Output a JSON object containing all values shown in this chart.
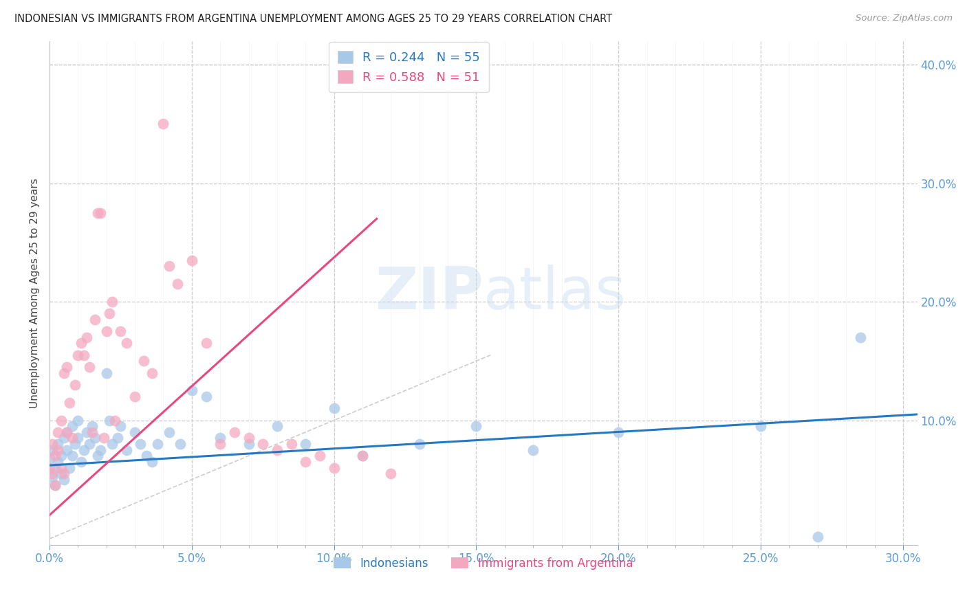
{
  "title": "INDONESIAN VS IMMIGRANTS FROM ARGENTINA UNEMPLOYMENT AMONG AGES 25 TO 29 YEARS CORRELATION CHART",
  "source": "Source: ZipAtlas.com",
  "ylabel": "Unemployment Among Ages 25 to 29 years",
  "legend_label_1": "Indonesians",
  "legend_label_2": "Immigrants from Argentina",
  "R1": 0.244,
  "N1": 55,
  "R2": 0.588,
  "N2": 51,
  "color_blue": "#a8c8e8",
  "color_pink": "#f4a8c0",
  "color_blue_line": "#2878c0",
  "color_pink_line": "#e84880",
  "color_diag": "#c8c8c8",
  "xlim": [
    0.0,
    0.305
  ],
  "ylim": [
    -0.005,
    0.42
  ],
  "xticks": [
    0.0,
    0.05,
    0.1,
    0.15,
    0.2,
    0.25,
    0.3
  ],
  "yticks_right": [
    0.1,
    0.2,
    0.3,
    0.4
  ],
  "indo_x": [
    0.0,
    0.001,
    0.001,
    0.002,
    0.002,
    0.003,
    0.003,
    0.004,
    0.004,
    0.005,
    0.005,
    0.006,
    0.006,
    0.007,
    0.008,
    0.008,
    0.009,
    0.01,
    0.01,
    0.011,
    0.012,
    0.013,
    0.014,
    0.015,
    0.016,
    0.017,
    0.018,
    0.02,
    0.021,
    0.022,
    0.024,
    0.025,
    0.027,
    0.03,
    0.032,
    0.034,
    0.036,
    0.038,
    0.042,
    0.046,
    0.05,
    0.055,
    0.06,
    0.07,
    0.08,
    0.09,
    0.1,
    0.11,
    0.13,
    0.15,
    0.17,
    0.2,
    0.25,
    0.27,
    0.285
  ],
  "indo_y": [
    0.068,
    0.052,
    0.075,
    0.06,
    0.045,
    0.08,
    0.065,
    0.055,
    0.07,
    0.05,
    0.085,
    0.09,
    0.075,
    0.06,
    0.095,
    0.07,
    0.08,
    0.1,
    0.085,
    0.065,
    0.075,
    0.09,
    0.08,
    0.095,
    0.085,
    0.07,
    0.075,
    0.14,
    0.1,
    0.08,
    0.085,
    0.095,
    0.075,
    0.09,
    0.08,
    0.07,
    0.065,
    0.08,
    0.09,
    0.08,
    0.125,
    0.12,
    0.085,
    0.08,
    0.095,
    0.08,
    0.11,
    0.07,
    0.08,
    0.095,
    0.075,
    0.09,
    0.095,
    0.002,
    0.17
  ],
  "arg_x": [
    0.0,
    0.001,
    0.001,
    0.002,
    0.002,
    0.003,
    0.003,
    0.004,
    0.004,
    0.005,
    0.005,
    0.006,
    0.006,
    0.007,
    0.008,
    0.009,
    0.01,
    0.011,
    0.012,
    0.013,
    0.014,
    0.015,
    0.016,
    0.017,
    0.018,
    0.019,
    0.02,
    0.021,
    0.022,
    0.023,
    0.025,
    0.027,
    0.03,
    0.033,
    0.036,
    0.04,
    0.042,
    0.045,
    0.05,
    0.055,
    0.06,
    0.065,
    0.07,
    0.075,
    0.08,
    0.085,
    0.09,
    0.095,
    0.1,
    0.11,
    0.12
  ],
  "arg_y": [
    0.06,
    0.055,
    0.08,
    0.07,
    0.045,
    0.09,
    0.075,
    0.06,
    0.1,
    0.055,
    0.14,
    0.145,
    0.09,
    0.115,
    0.085,
    0.13,
    0.155,
    0.165,
    0.155,
    0.17,
    0.145,
    0.09,
    0.185,
    0.275,
    0.275,
    0.085,
    0.175,
    0.19,
    0.2,
    0.1,
    0.175,
    0.165,
    0.12,
    0.15,
    0.14,
    0.35,
    0.23,
    0.215,
    0.235,
    0.165,
    0.08,
    0.09,
    0.085,
    0.08,
    0.075,
    0.08,
    0.065,
    0.07,
    0.06,
    0.07,
    0.055
  ],
  "blue_trend_x": [
    0.0,
    0.305
  ],
  "blue_trend_y": [
    0.062,
    0.105
  ],
  "pink_trend_x": [
    0.0,
    0.115
  ],
  "pink_trend_y": [
    0.02,
    0.27
  ]
}
